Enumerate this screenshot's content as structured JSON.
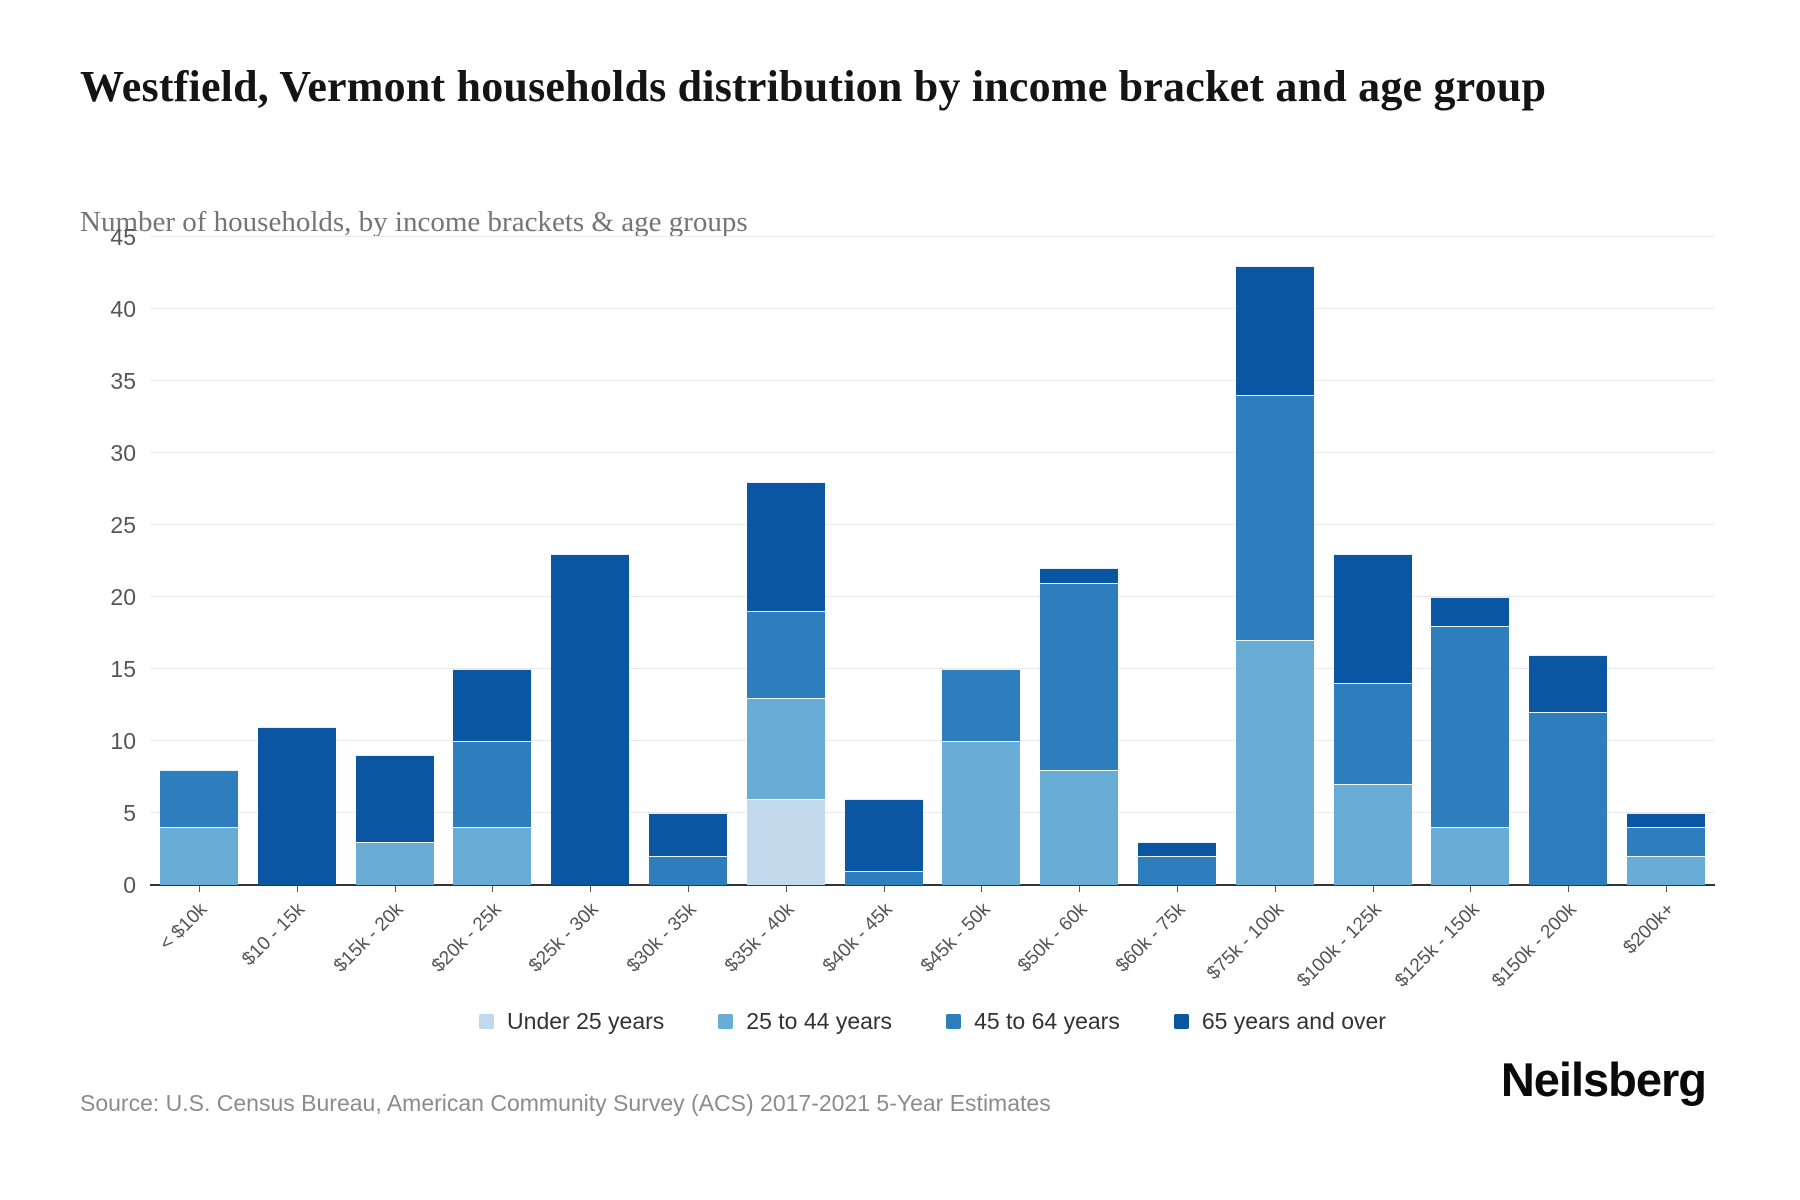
{
  "header": {
    "title": "Westfield, Vermont households distribution by income bracket and age group",
    "subtitle": "Number of households, by income brackets & age groups"
  },
  "chart_data": {
    "type": "bar",
    "stacked": true,
    "title": "Westfield, Vermont households distribution by income bracket and age group",
    "subtitle": "Number of households, by income brackets & age groups",
    "categories": [
      "< $10k",
      "$10 - 15k",
      "$15k - 20k",
      "$20k - 25k",
      "$25k - 30k",
      "$30k - 35k",
      "$35k - 40k",
      "$40k - 45k",
      "$45k - 50k",
      "$50k - 60k",
      "$60k - 75k",
      "$75k - 100k",
      "$100k - 125k",
      "$125k - 150k",
      "$150k - 200k",
      "$200k+"
    ],
    "series": [
      {
        "name": "Under 25 years",
        "color": "#c1d9eb",
        "values": [
          0,
          0,
          0,
          0,
          0,
          0,
          6,
          0,
          0,
          0,
          0,
          0,
          0,
          0,
          0,
          0
        ]
      },
      {
        "name": "25 to 44 years",
        "color": "#69acd6",
        "values": [
          4,
          0,
          3,
          4,
          0,
          0,
          7,
          0,
          10,
          8,
          0,
          17,
          7,
          4,
          0,
          2
        ]
      },
      {
        "name": "45 to 64 years",
        "color": "#2e7ebd",
        "values": [
          4,
          0,
          0,
          6,
          0,
          2,
          6,
          1,
          5,
          13,
          2,
          17,
          7,
          14,
          12,
          2
        ]
      },
      {
        "name": "65 years and over",
        "color": "#0b56a2",
        "values": [
          0,
          11,
          6,
          5,
          23,
          3,
          9,
          5,
          0,
          1,
          1,
          9,
          9,
          2,
          4,
          1
        ]
      }
    ],
    "totals": [
      8,
      11,
      9,
      15,
      23,
      5,
      28,
      6,
      15,
      22,
      3,
      43,
      23,
      20,
      16,
      5
    ],
    "xlabel": "",
    "ylabel": "",
    "ylim": [
      0,
      45
    ],
    "ytick_step": 5,
    "yticks": [
      0,
      5,
      10,
      15,
      20,
      25,
      30,
      35,
      40,
      45
    ],
    "grid": true,
    "legend_position": "bottom"
  },
  "footer": {
    "source": "Source: U.S. Census Bureau, American Community Survey (ACS) 2017-2021 5-Year Estimates",
    "brand": "Neilsberg"
  }
}
